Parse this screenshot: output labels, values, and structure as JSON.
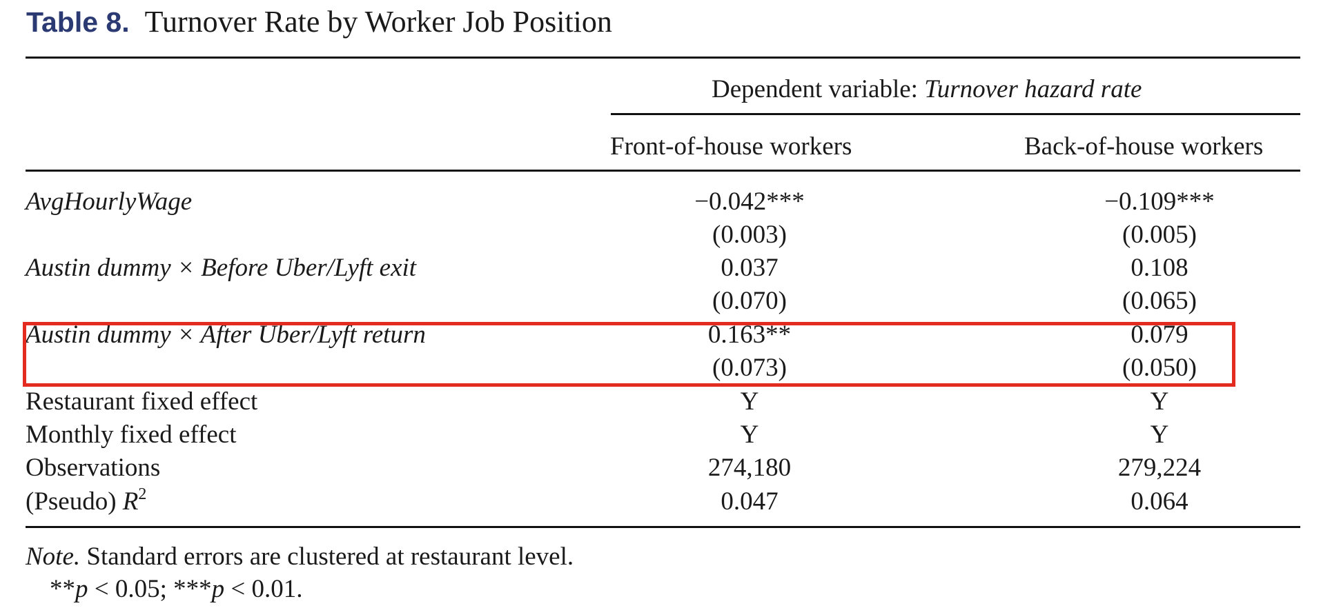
{
  "title": {
    "label": "Table 8.",
    "text": "Turnover Rate by Worker Job Position"
  },
  "header": {
    "dependent_prefix": "Dependent variable: ",
    "dependent_variable": "Turnover hazard rate",
    "columns": [
      "Front-of-house workers",
      "Back-of-house workers"
    ]
  },
  "rows": [
    {
      "label": "AvgHourlyWage",
      "values": [
        "−0.042***",
        "−0.109***"
      ]
    },
    {
      "label": "",
      "values": [
        "(0.003)",
        "(0.005)"
      ]
    },
    {
      "label": "Austin dummy × Before Uber/Lyft exit",
      "values": [
        "0.037",
        "0.108"
      ]
    },
    {
      "label": "",
      "values": [
        "(0.070)",
        "(0.065)"
      ]
    },
    {
      "label": "Austin dummy × After Uber/Lyft return",
      "values": [
        "0.163**",
        "0.079"
      ]
    },
    {
      "label": "",
      "values": [
        "(0.073)",
        "(0.050)"
      ]
    },
    {
      "label": "Restaurant fixed effect",
      "values": [
        "Y",
        "Y"
      ]
    },
    {
      "label": "Monthly fixed effect",
      "values": [
        "Y",
        "Y"
      ]
    },
    {
      "label": "Observations",
      "values": [
        "274,180",
        "279,224"
      ]
    },
    {
      "label_prefix": "(Pseudo) ",
      "label_var": "R",
      "label_sup": "2",
      "values": [
        "0.047",
        "0.064"
      ]
    }
  ],
  "note": {
    "label": "Note.",
    "text": " Standard errors are clustered at restaurant level.",
    "sig_1_stars": "**",
    "sig_1_p": "p",
    "sig_1_rest": " < 0.05; ",
    "sig_2_stars": "***",
    "sig_2_p": "p",
    "sig_2_rest": " < 0.01."
  },
  "colors": {
    "title_label": "#2b3a73",
    "highlight_box": "#e32b20"
  }
}
